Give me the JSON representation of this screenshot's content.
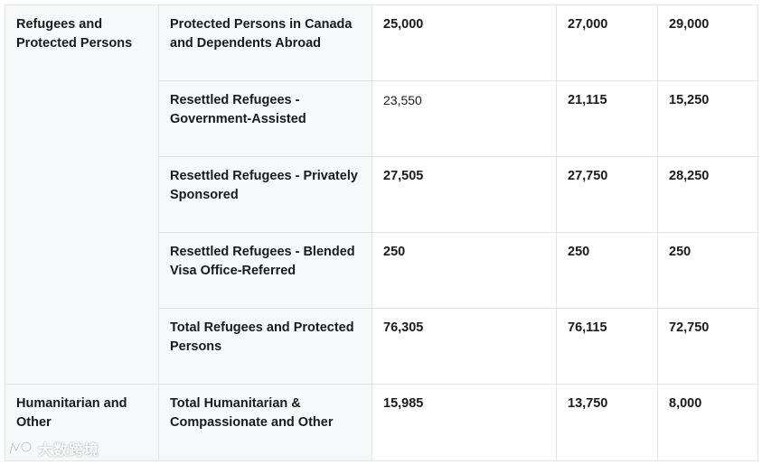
{
  "table": {
    "groups": [
      {
        "category": "Refugees and Protected Persons",
        "rows": [
          {
            "label": "Protected Persons in Canada and Dependents Abroad",
            "values": [
              "25,000",
              "27,000",
              "29,000"
            ]
          },
          {
            "label": "Resettled Refugees - Government-Assisted",
            "values": [
              "23,550",
              "21,115",
              "15,250"
            ]
          },
          {
            "label": "Resettled Refugees - Privately Sponsored",
            "values": [
              "27,505",
              "27,750",
              "28,250"
            ]
          },
          {
            "label": "Resettled Refugees - Blended Visa Office-Referred",
            "values": [
              "250",
              "250",
              "250"
            ]
          },
          {
            "label": "Total Refugees and Protected Persons",
            "values": [
              "76,305",
              "76,115",
              "72,750"
            ]
          }
        ]
      },
      {
        "category": "Humanitarian and Other",
        "rows": [
          {
            "label": "Total Humanitarian & Compassionate and Other",
            "values": [
              "15,985",
              "13,750",
              "8,000"
            ]
          }
        ]
      }
    ]
  },
  "watermark": {
    "text": "大数跨境"
  }
}
